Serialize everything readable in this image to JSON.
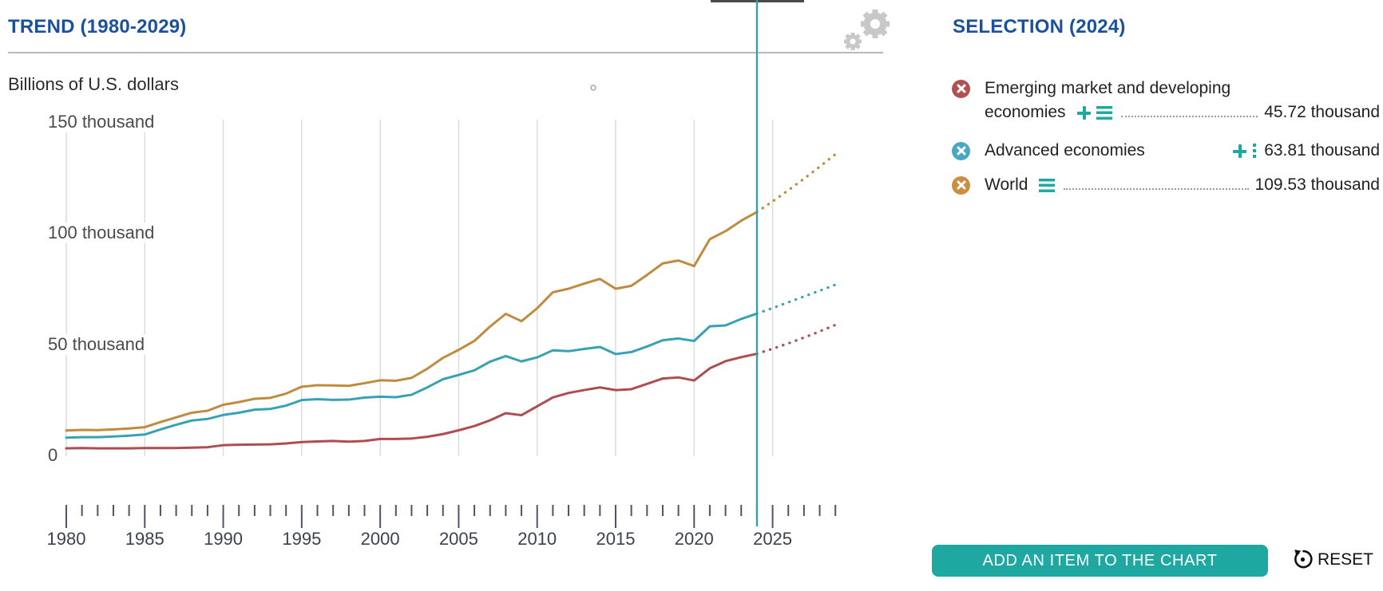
{
  "trend": {
    "title": "TREND (1980-2029)"
  },
  "unit_label": "Billions of U.S. dollars",
  "selection": {
    "title": "SELECTION (2024)",
    "items": [
      {
        "label_line1": "Emerging market and developing",
        "label_line2": "economies",
        "value": "45.72 thousand",
        "icon_color": "#b15153",
        "icons": [
          "plus",
          "hamburger"
        ],
        "leader": true
      },
      {
        "label": "Advanced economies",
        "value": "63.81 thousand",
        "icon_color": "#4aa7c4",
        "icons": [
          "plus",
          "vdots"
        ],
        "leader": false
      },
      {
        "label": "World",
        "value": "109.53 thousand",
        "icon_color": "#cb8e41",
        "icons": [
          "hamburger"
        ],
        "leader": true
      }
    ]
  },
  "buttons": {
    "add_item": "ADD AN ITEM TO THE CHART",
    "reset": "RESET"
  },
  "colors": {
    "accent_blue": "#1b509d",
    "teal_ui": "#1fa8a2",
    "selection_line": "#2ba3ac",
    "grid": "#dcdcdc",
    "tick": "#4e5468",
    "divider": "#b9b9b9",
    "gear": "#c8c8c8",
    "tooltip_edge": "#4a4a4a"
  },
  "chart_data": {
    "type": "line",
    "title": "TREND (1980-2029)",
    "ylabel": "Billions of U.S. dollars",
    "unit_note": "values in thousands of billions of U.S. dollars",
    "xlim": [
      1980,
      2029
    ],
    "ylim": [
      0,
      150
    ],
    "grid": "vertical-only",
    "selection_year": 2024,
    "x": [
      1980,
      1981,
      1982,
      1983,
      1984,
      1985,
      1986,
      1987,
      1988,
      1989,
      1990,
      1991,
      1992,
      1993,
      1994,
      1995,
      1996,
      1997,
      1998,
      1999,
      2000,
      2001,
      2002,
      2003,
      2004,
      2005,
      2006,
      2007,
      2008,
      2009,
      2010,
      2011,
      2012,
      2013,
      2014,
      2015,
      2016,
      2017,
      2018,
      2019,
      2020,
      2021,
      2022,
      2023,
      2024,
      2025,
      2026,
      2027,
      2028,
      2029
    ],
    "x_major_ticks": [
      1980,
      1985,
      1990,
      1995,
      2000,
      2005,
      2010,
      2015,
      2020,
      2025
    ],
    "x_major_tick_labels": [
      "1980",
      "1985",
      "1990",
      "1995",
      "2000",
      "2005",
      "2010",
      "2015",
      "2020",
      "2025"
    ],
    "y_ticks": [
      {
        "label": "150 thousand",
        "value": 150
      },
      {
        "label": "100 thousand",
        "value": 100
      },
      {
        "label": "50 thousand",
        "value": 50
      },
      {
        "label": "0",
        "value": 0
      }
    ],
    "series": [
      {
        "name": "World",
        "color": "#bf8b3e",
        "projection_from": 2024,
        "value_at_selection": "109.53 thousand",
        "values": [
          11.2,
          11.5,
          11.4,
          11.7,
          12.1,
          12.7,
          15.0,
          17.1,
          19.2,
          20.1,
          22.8,
          24.0,
          25.5,
          25.9,
          27.8,
          30.9,
          31.6,
          31.5,
          31.3,
          32.5,
          33.8,
          33.6,
          34.9,
          39.0,
          43.9,
          47.5,
          51.5,
          58.0,
          63.7,
          60.4,
          66.2,
          73.4,
          75.0,
          77.3,
          79.4,
          75.0,
          76.3,
          81.2,
          86.4,
          87.7,
          85.2,
          97.3,
          100.9,
          105.6,
          109.53,
          114.3,
          119.3,
          124.5,
          129.9,
          135.5
        ]
      },
      {
        "name": "Advanced economies",
        "color": "#38a2b4",
        "projection_from": 2024,
        "value_at_selection": "63.81 thousand",
        "values": [
          8.0,
          8.2,
          8.2,
          8.5,
          8.9,
          9.4,
          11.7,
          13.8,
          15.7,
          16.4,
          18.2,
          19.2,
          20.6,
          20.9,
          22.4,
          24.9,
          25.3,
          25.0,
          25.1,
          26.0,
          26.4,
          26.2,
          27.3,
          30.6,
          34.3,
          36.2,
          38.3,
          42.2,
          44.7,
          42.3,
          44.1,
          47.3,
          46.9,
          47.9,
          48.8,
          45.6,
          46.5,
          49.0,
          51.8,
          52.6,
          51.5,
          58.1,
          58.5,
          61.4,
          63.81,
          66.3,
          68.9,
          71.5,
          74.1,
          76.8
        ]
      },
      {
        "name": "Emerging market and developing economies",
        "color": "#ae4d51",
        "projection_from": 2024,
        "value_at_selection": "45.72 thousand",
        "values": [
          3.2,
          3.3,
          3.2,
          3.2,
          3.2,
          3.3,
          3.3,
          3.3,
          3.5,
          3.7,
          4.6,
          4.8,
          4.9,
          5.0,
          5.4,
          6.0,
          6.3,
          6.5,
          6.2,
          6.5,
          7.4,
          7.4,
          7.6,
          8.4,
          9.6,
          11.3,
          13.2,
          15.8,
          19.0,
          18.1,
          22.1,
          26.1,
          28.1,
          29.4,
          30.6,
          29.4,
          29.8,
          32.2,
          34.6,
          35.1,
          33.7,
          39.2,
          42.4,
          44.2,
          45.72,
          48.0,
          50.4,
          53.0,
          55.8,
          58.7
        ]
      }
    ],
    "legend_position": "right"
  }
}
